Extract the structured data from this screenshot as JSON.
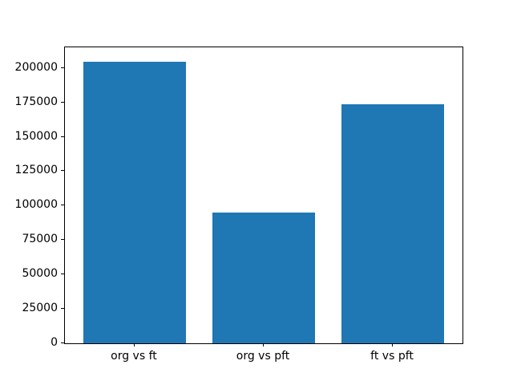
{
  "chart_data": {
    "type": "bar",
    "title": "",
    "xlabel": "",
    "ylabel": "",
    "categories": [
      "org vs ft",
      "org vs pft",
      "ft vs pft"
    ],
    "values": [
      204800,
      95000,
      173500
    ],
    "yticks": [
      0,
      25000,
      50000,
      75000,
      100000,
      125000,
      150000,
      175000,
      200000
    ],
    "ylim": [
      0,
      215000
    ],
    "xlim": [
      -0.54,
      2.54
    ],
    "bar_width_data_units": 0.8,
    "bar_color": "#1f77b4",
    "axis_color": "#000000",
    "text_color": "#000000",
    "background_color": "#ffffff",
    "grid": false,
    "legend": "none"
  }
}
